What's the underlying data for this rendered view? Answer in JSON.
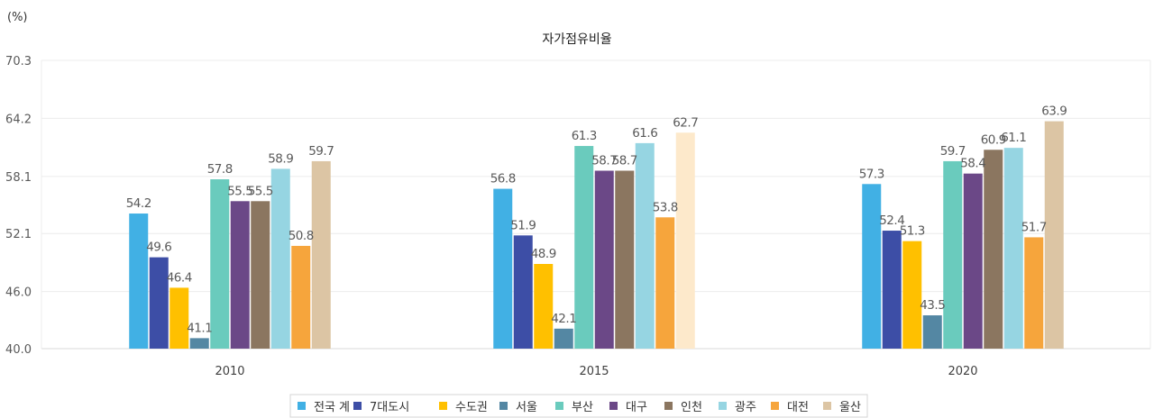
{
  "chart_data": {
    "type": "bar",
    "title": "자가점유비율",
    "unit_label": "(%)",
    "categories": [
      "2010",
      "2015",
      "2020"
    ],
    "yticks": [
      "40.0",
      "46.0",
      "52.1",
      "58.1",
      "64.2",
      "70.3"
    ],
    "ylim": [
      40.0,
      70.3
    ],
    "grid": true,
    "legend_position": "bottom",
    "series": [
      {
        "name": "전국 계",
        "color": "#41b0e4",
        "values": [
          54.2,
          56.8,
          57.3
        ]
      },
      {
        "name": "7대도시",
        "color": "#3d4ea6",
        "values": [
          49.6,
          51.9,
          52.4
        ]
      },
      {
        "name": "수도권",
        "color": "#ffc000",
        "values": [
          46.4,
          48.9,
          51.3
        ]
      },
      {
        "name": "서울",
        "color": "#5487a3",
        "values": [
          41.1,
          42.1,
          43.5
        ]
      },
      {
        "name": "부산",
        "color": "#6acbbd",
        "values": [
          57.8,
          61.3,
          59.7
        ]
      },
      {
        "name": "대구",
        "color": "#6b4887",
        "values": [
          55.5,
          58.7,
          58.4
        ]
      },
      {
        "name": "인천",
        "color": "#8b7660",
        "values": [
          55.5,
          58.7,
          60.9
        ]
      },
      {
        "name": "광주",
        "color": "#96d5e2",
        "values": [
          58.9,
          61.6,
          61.1
        ]
      },
      {
        "name": "대전",
        "color": "#f6a53c",
        "values": [
          50.8,
          53.8,
          51.7
        ]
      },
      {
        "name": "울산",
        "color": "#dcc5a4",
        "values": [
          59.7,
          62.7,
          63.9
        ]
      }
    ],
    "point_colors": {
      "울산": [
        "#dcc5a4",
        "#fde9cb",
        "#dcc5a4"
      ]
    }
  }
}
